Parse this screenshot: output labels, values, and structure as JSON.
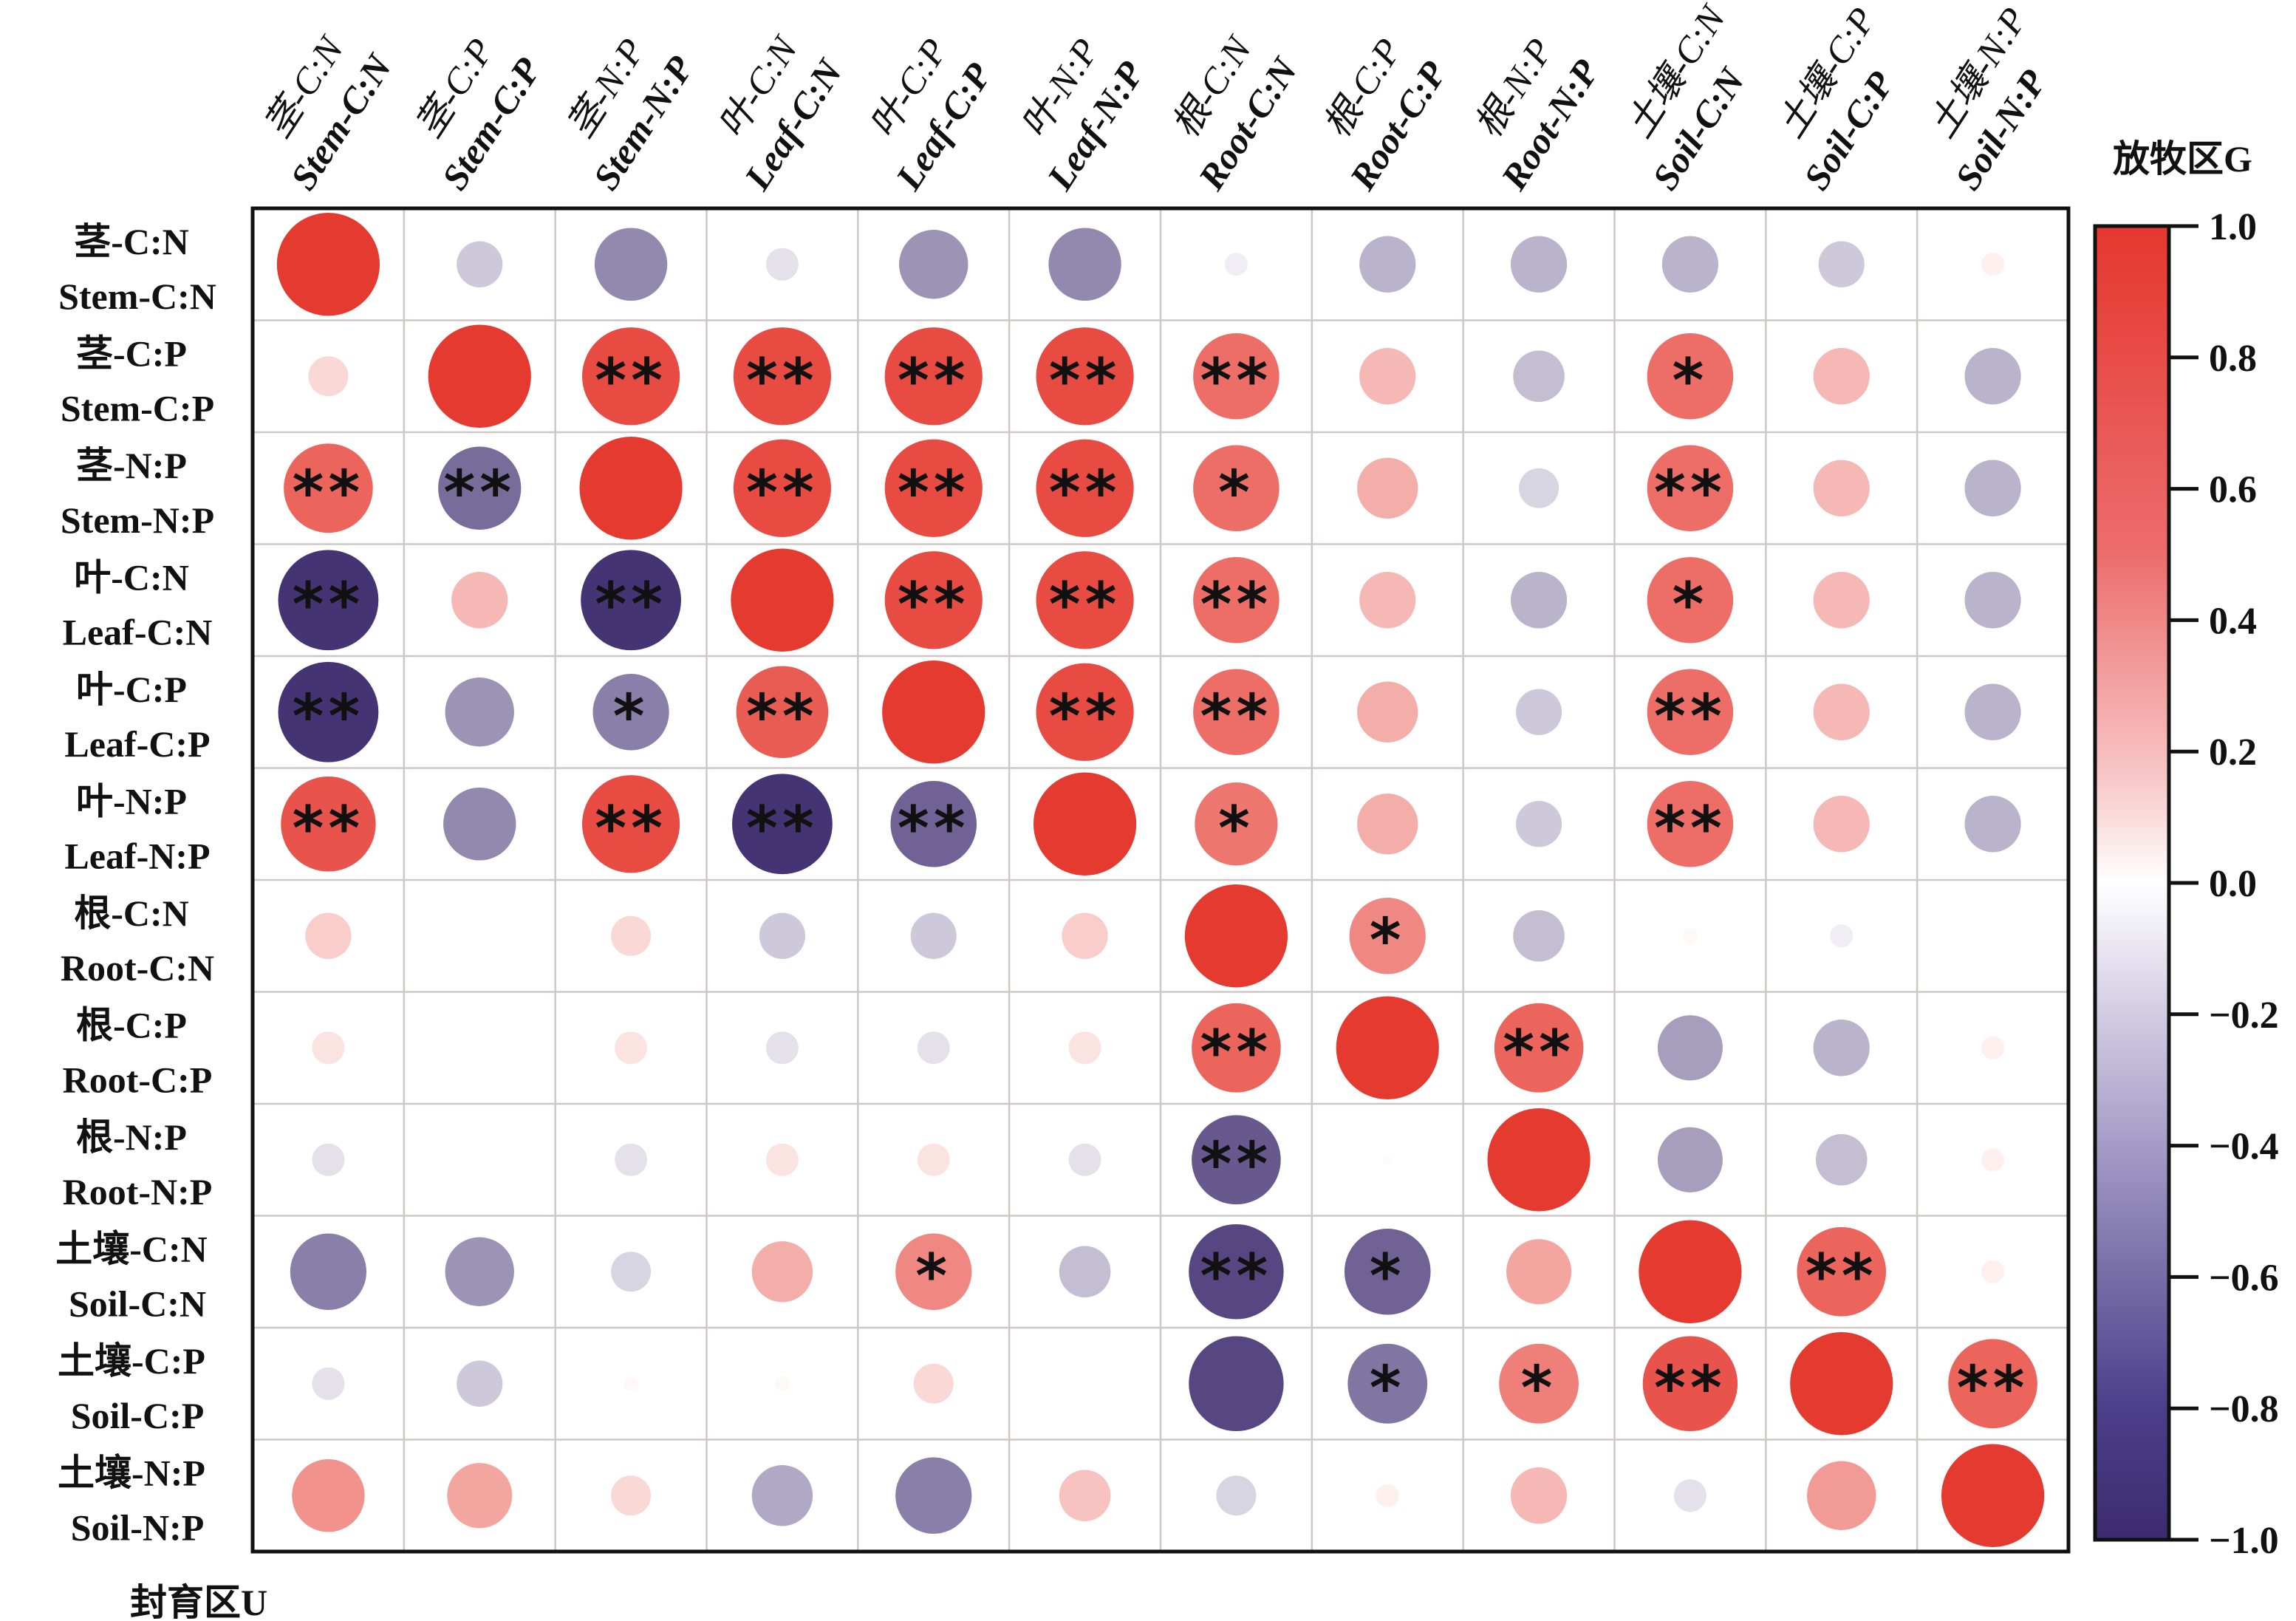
{
  "chart_data": {
    "type": "heatmap",
    "subtype": "correlation-circle-matrix",
    "upper_triangle_label": "放牧区G",
    "lower_triangle_label": "封育区U",
    "variables": [
      {
        "cn": "茎-C:N",
        "en": "Stem-C:N"
      },
      {
        "cn": "茎-C:P",
        "en": "Stem-C:P"
      },
      {
        "cn": "茎-N:P",
        "en": "Stem-N:P"
      },
      {
        "cn": "叶-C:N",
        "en": "Leaf-C:N"
      },
      {
        "cn": "叶-C:P",
        "en": "Leaf-C:P"
      },
      {
        "cn": "叶-N:P",
        "en": "Leaf-N:P"
      },
      {
        "cn": "根-C:N",
        "en": "Root-C:N"
      },
      {
        "cn": "根-C:P",
        "en": "Root-C:P"
      },
      {
        "cn": "根-N:P",
        "en": "Root-N:P"
      },
      {
        "cn": "土壤-C:N",
        "en": "Soil-C:N"
      },
      {
        "cn": "土壤-C:P",
        "en": "Soil-C:P"
      },
      {
        "cn": "土壤-N:P",
        "en": "Soil-N:P"
      }
    ],
    "matrix": [
      [
        1.0,
        -0.2,
        -0.5,
        -0.1,
        -0.45,
        -0.5,
        -0.05,
        -0.3,
        -0.3,
        -0.3,
        -0.2,
        0.05
      ],
      [
        0.15,
        1.0,
        0.9,
        0.9,
        0.9,
        0.9,
        0.7,
        0.3,
        -0.25,
        0.7,
        0.3,
        -0.3
      ],
      [
        0.75,
        -0.65,
        1.0,
        0.9,
        0.9,
        0.9,
        0.7,
        0.35,
        -0.15,
        0.7,
        0.3,
        -0.3
      ],
      [
        -0.95,
        0.3,
        -0.95,
        1.0,
        0.9,
        0.9,
        0.7,
        0.3,
        -0.3,
        0.7,
        0.3,
        -0.3
      ],
      [
        -0.95,
        -0.45,
        -0.55,
        0.8,
        1.0,
        0.9,
        0.7,
        0.35,
        -0.2,
        0.7,
        0.3,
        -0.3
      ],
      [
        0.85,
        -0.5,
        0.9,
        -0.95,
        -0.7,
        1.0,
        0.65,
        0.35,
        -0.2,
        0.7,
        0.3,
        -0.3
      ],
      [
        0.2,
        0.0,
        0.15,
        -0.2,
        -0.2,
        0.2,
        1.0,
        0.55,
        -0.25,
        0.02,
        -0.05,
        0.0
      ],
      [
        0.1,
        0.0,
        0.1,
        -0.1,
        -0.1,
        0.1,
        0.75,
        1.0,
        0.75,
        -0.4,
        -0.3,
        0.05
      ],
      [
        -0.1,
        0.0,
        -0.1,
        0.1,
        0.1,
        -0.1,
        -0.75,
        0.01,
        1.0,
        -0.4,
        -0.25,
        0.05
      ],
      [
        -0.55,
        -0.45,
        -0.15,
        0.35,
        0.55,
        -0.25,
        -0.85,
        -0.7,
        0.4,
        1.0,
        0.75,
        0.05
      ],
      [
        -0.1,
        -0.2,
        0.02,
        0.02,
        0.15,
        0.0,
        -0.85,
        -0.6,
        0.6,
        0.85,
        1.0,
        0.75
      ],
      [
        0.5,
        0.4,
        0.15,
        -0.35,
        -0.55,
        0.25,
        -0.15,
        0.05,
        0.3,
        -0.1,
        0.45,
        1.0
      ]
    ],
    "significance": [
      [
        "",
        "",
        "",
        "",
        "",
        "",
        "",
        "",
        "",
        "",
        "",
        ""
      ],
      [
        "",
        "",
        "**",
        "**",
        "**",
        "**",
        "**",
        "",
        "",
        "*",
        "",
        ""
      ],
      [
        "**",
        "**",
        "",
        "**",
        "**",
        "**",
        "*",
        "",
        "",
        "**",
        "",
        ""
      ],
      [
        "**",
        "",
        "**",
        "",
        "**",
        "**",
        "**",
        "",
        "",
        "*",
        "",
        ""
      ],
      [
        "**",
        "",
        "*",
        "**",
        "",
        "**",
        "**",
        "",
        "",
        "**",
        "",
        ""
      ],
      [
        "**",
        "",
        "**",
        "**",
        "**",
        "",
        "*",
        "",
        "",
        "**",
        "",
        ""
      ],
      [
        "",
        "",
        "",
        "",
        "",
        "",
        "",
        "*",
        "",
        "",
        "",
        ""
      ],
      [
        "",
        "",
        "",
        "",
        "",
        "",
        "**",
        "",
        "**",
        "",
        "",
        ""
      ],
      [
        "",
        "",
        "",
        "",
        "",
        "",
        "**",
        "",
        "",
        "",
        "",
        ""
      ],
      [
        "",
        "",
        "",
        "",
        "*",
        "",
        "**",
        "*",
        "",
        "",
        "**",
        ""
      ],
      [
        "",
        "",
        "",
        "",
        "",
        "",
        "",
        "*",
        "*",
        "**",
        "",
        "**"
      ],
      [
        "",
        "",
        "",
        "",
        "",
        "",
        "",
        "",
        "",
        "",
        "",
        ""
      ]
    ],
    "colorbar": {
      "range": [
        -1.0,
        1.0
      ],
      "ticks": [
        "1.0",
        "0.8",
        "0.6",
        "0.4",
        "0.2",
        "0.0",
        "−0.2",
        "−0.4",
        "−0.6",
        "−0.8",
        "−1.0"
      ],
      "tick_values": [
        1.0,
        0.8,
        0.6,
        0.4,
        0.2,
        0.0,
        -0.2,
        -0.4,
        -0.6,
        -0.8,
        -1.0
      ],
      "colors": {
        "positive": "#e53a30",
        "zero": "#ffffff",
        "negative": "#3d2b6e"
      }
    },
    "grid": true,
    "legend": "colorbar-right"
  }
}
